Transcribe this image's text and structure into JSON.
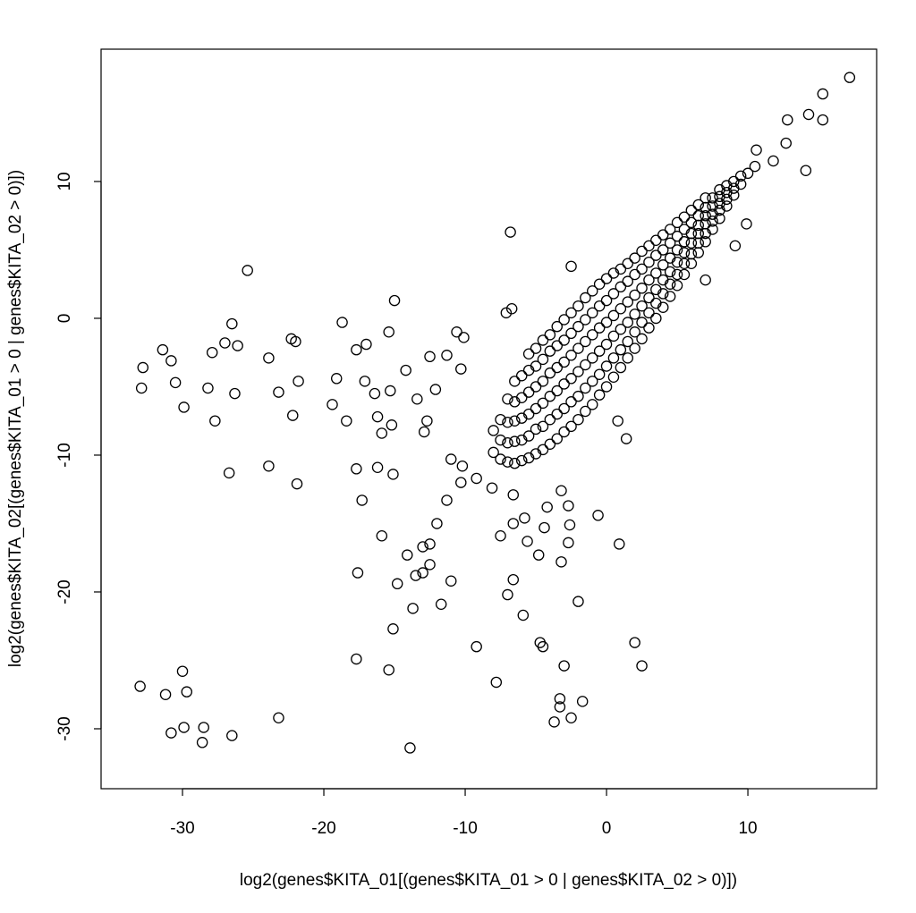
{
  "chart_data": {
    "type": "scatter",
    "x_label": "log2(genes$KITA_01[(genes$KITA_01 > 0 | genes$KITA_02 > 0)])",
    "y_label": "log2(genes$KITA_02[(genes$KITA_01 > 0 | genes$KITA_02 > 0)])",
    "xlim": [
      -35.76,
      19.11
    ],
    "ylim": [
      -34.38,
      19.67
    ],
    "xticks": [
      -30,
      -20,
      -10,
      0,
      10
    ],
    "yticks": [
      -30,
      -20,
      -10,
      0,
      10
    ],
    "color": "#000000",
    "x": [
      -6.8,
      -25.4,
      -15.0,
      -26.5,
      -18.7,
      -31.4,
      -32.8,
      -30.8,
      -27.0,
      -27.9,
      -26.1,
      -23.9,
      -22.3,
      -22.0,
      -32.9,
      -30.5,
      -28.2,
      -29.9,
      -26.3,
      -27.7,
      -23.2,
      -21.8,
      -22.2,
      -26.7,
      -23.9,
      -21.9,
      -17.0,
      -17.7,
      -15.4,
      -17.1,
      -19.1,
      -19.4,
      -18.4,
      -16.4,
      -15.3,
      -14.2,
      -16.2,
      -15.9,
      -15.2,
      -17.7,
      -17.3,
      -16.2,
      -15.1,
      -12.5,
      -12.1,
      -13.4,
      -12.7,
      -12.9,
      -10.6,
      -10.1,
      -11.3,
      -10.3,
      -11.0,
      -10.2,
      -10.3,
      -11.3,
      -12.0,
      -13.0,
      -12.5,
      -14.1,
      -12.5,
      -13.5,
      -13.0,
      -14.8,
      -17.6,
      -15.9,
      -11.0,
      -11.7,
      -13.7,
      -15.1,
      -17.7,
      -15.4,
      -13.9,
      -9.2,
      -8.1,
      -7.5,
      -6.6,
      -6.6,
      -5.8,
      -5.6,
      -4.8,
      -4.2,
      -4.4,
      -3.2,
      -2.7,
      -2.6,
      -2.7,
      -3.2,
      -0.6,
      0.9,
      -6.6,
      -7.0,
      -5.9,
      -2.0,
      -9.2,
      -7.8,
      -4.7,
      -4.5,
      -3.0,
      -3.3,
      -3.3,
      -3.7,
      -2.5,
      -1.7,
      2.0,
      2.5,
      -33.0,
      -31.2,
      -30.0,
      -29.7,
      -30.8,
      -29.9,
      -28.5,
      -28.6,
      -26.5,
      -23.2,
      -2.5,
      -6.7,
      -7.1,
      9.9,
      9.1,
      7.0,
      17.2,
      15.3,
      15.3,
      12.8,
      14.3,
      14.1,
      12.7,
      11.8,
      10.6,
      1.4,
      0.8,
      -8,
      -8,
      -7.5,
      -7.5,
      -7.5,
      -7,
      -7,
      -7,
      -7,
      -6.5,
      -6.5,
      -6.5,
      -6.5,
      -6.5,
      -6,
      -6,
      -6,
      -6,
      -6,
      -5.5,
      -5.5,
      -5.5,
      -5.5,
      -5.5,
      -5.5,
      -5,
      -5,
      -5,
      -5,
      -5,
      -5,
      -4.5,
      -4.5,
      -4.5,
      -4.5,
      -4.5,
      -4.5,
      -4,
      -4,
      -4,
      -4,
      -4,
      -4,
      -3.5,
      -3.5,
      -3.5,
      -3.5,
      -3.5,
      -3.5,
      -3,
      -3,
      -3,
      -3,
      -3,
      -3,
      -2.5,
      -2.5,
      -2.5,
      -2.5,
      -2.5,
      -2.5,
      -2,
      -2,
      -2,
      -2,
      -2,
      -2,
      -1.5,
      -1.5,
      -1.5,
      -1.5,
      -1.5,
      -1.5,
      -1,
      -1,
      -1,
      -1,
      -1,
      -1,
      -0.5,
      -0.5,
      -0.5,
      -0.5,
      -0.5,
      -0.5,
      0,
      0,
      0,
      0,
      0,
      0,
      0.5,
      0.5,
      0.5,
      0.5,
      0.5,
      0.5,
      1,
      1,
      1,
      1,
      1,
      1,
      1.5,
      1.5,
      1.5,
      1.5,
      1.5,
      1.5,
      2,
      2,
      2,
      2,
      2,
      2,
      2.5,
      2.5,
      2.5,
      2.5,
      2.5,
      2.5,
      3,
      3,
      3,
      3,
      3,
      3,
      3.5,
      3.5,
      3.5,
      3.5,
      3.5,
      3.5,
      4,
      4,
      4,
      4,
      4,
      4,
      4.5,
      4.5,
      4.5,
      4.5,
      4.5,
      4.5,
      5,
      5,
      5,
      5,
      5,
      5,
      5.5,
      5.5,
      5.5,
      5.5,
      5.5,
      5.5,
      6,
      6,
      6,
      6,
      6,
      6,
      6.5,
      6.5,
      6.5,
      6.5,
      6.5,
      6.5,
      7,
      7,
      7,
      7,
      7,
      7,
      7.5,
      7.5,
      7.5,
      7.5,
      7.5,
      8,
      8,
      8,
      8,
      8,
      8.5,
      8.5,
      8.5,
      8.5,
      9,
      9,
      9,
      9.5,
      9.5,
      10,
      10.5
    ],
    "values": [
      6.3,
      3.5,
      1.3,
      -0.4,
      -0.3,
      -2.3,
      -3.6,
      -3.1,
      -1.8,
      -2.5,
      -2.0,
      -2.9,
      -1.5,
      -1.7,
      -5.1,
      -4.7,
      -5.1,
      -6.5,
      -5.5,
      -7.5,
      -5.4,
      -4.6,
      -7.1,
      -11.3,
      -10.8,
      -12.1,
      -1.9,
      -2.3,
      -1.0,
      -4.6,
      -4.4,
      -6.3,
      -7.5,
      -5.5,
      -5.3,
      -3.8,
      -7.2,
      -8.4,
      -7.8,
      -11.0,
      -13.3,
      -10.9,
      -11.4,
      -2.8,
      -5.2,
      -5.9,
      -7.5,
      -8.3,
      -1.0,
      -1.4,
      -2.7,
      -3.7,
      -10.3,
      -10.8,
      -12.0,
      -13.3,
      -15.0,
      -16.7,
      -16.5,
      -17.3,
      -18.0,
      -18.8,
      -18.6,
      -19.4,
      -18.6,
      -15.9,
      -19.2,
      -20.9,
      -21.2,
      -22.7,
      -24.9,
      -25.7,
      -31.4,
      -11.7,
      -12.4,
      -15.9,
      -12.9,
      -15.0,
      -14.6,
      -16.3,
      -17.3,
      -13.8,
      -15.3,
      -12.6,
      -13.7,
      -15.1,
      -16.4,
      -17.8,
      -14.4,
      -16.5,
      -19.1,
      -20.2,
      -21.7,
      -20.7,
      -24.0,
      -26.6,
      -23.7,
      -24.0,
      -25.4,
      -27.8,
      -28.4,
      -29.5,
      -29.2,
      -28.0,
      -23.7,
      -25.4,
      -26.9,
      -27.5,
      -25.8,
      -27.3,
      -30.3,
      -29.9,
      -29.9,
      -31.0,
      -30.5,
      -29.2,
      3.8,
      0.7,
      0.4,
      6.9,
      5.3,
      2.8,
      17.6,
      16.4,
      14.5,
      14.5,
      14.9,
      10.8,
      12.8,
      11.5,
      12.3,
      -8.8,
      -7.5,
      -9.8,
      -8.2,
      -10.3,
      -8.9,
      -7.4,
      -10.5,
      -9.1,
      -7.6,
      -5.9,
      -10.6,
      -9.0,
      -7.5,
      -6.1,
      -4.6,
      -10.4,
      -8.9,
      -7.3,
      -5.8,
      -4.2,
      -10.2,
      -8.6,
      -7.0,
      -5.4,
      -3.8,
      -2.6,
      -9.9,
      -8.1,
      -6.6,
      -5.0,
      -3.5,
      -2.2,
      -9.6,
      -7.9,
      -6.2,
      -4.6,
      -3.0,
      -1.6,
      -9.2,
      -7.4,
      -5.7,
      -4.0,
      -2.4,
      -1.2,
      -8.8,
      -7.0,
      -5.3,
      -3.6,
      -2.0,
      -0.6,
      -8.3,
      -6.6,
      -4.8,
      -3.2,
      -1.6,
      -0.1,
      -7.9,
      -6.1,
      -4.4,
      -2.7,
      -1.1,
      0.4,
      -7.4,
      -5.7,
      -3.9,
      -2.2,
      -0.6,
      0.9,
      -6.8,
      -5.1,
      -3.4,
      -1.7,
      -0.1,
      1.5,
      -6.3,
      -4.6,
      -2.9,
      -1.2,
      0.4,
      2.0,
      -5.6,
      -4.1,
      -2.4,
      -0.7,
      0.9,
      2.5,
      -5.0,
      -3.5,
      -1.9,
      -0.3,
      1.3,
      2.9,
      -4.3,
      -2.9,
      -1.3,
      0.2,
      1.8,
      3.3,
      -3.6,
      -2.3,
      -0.8,
      0.7,
      2.3,
      3.6,
      -2.9,
      -1.7,
      -0.3,
      1.2,
      2.7,
      4.0,
      -2.2,
      -1.0,
      0.3,
      1.7,
      3.2,
      4.4,
      -1.5,
      -0.3,
      0.9,
      2.2,
      3.6,
      4.9,
      -0.7,
      0.4,
      1.5,
      2.8,
      4.1,
      5.3,
      0.0,
      1.1,
      2.1,
      3.3,
      4.6,
      5.7,
      0.8,
      1.8,
      2.8,
      3.9,
      5.0,
      6.1,
      1.6,
      2.5,
      3.4,
      4.4,
      5.5,
      6.5,
      2.4,
      3.2,
      4.1,
      5.0,
      6.0,
      7.0,
      3.2,
      4.0,
      4.8,
      5.6,
      6.5,
      7.4,
      4.0,
      4.7,
      5.5,
      6.2,
      7.0,
      7.9,
      4.8,
      5.5,
      6.2,
      6.8,
      7.5,
      8.3,
      5.6,
      6.2,
      6.9,
      7.5,
      8.1,
      8.8,
      6.5,
      7.1,
      7.6,
      8.2,
      8.8,
      7.3,
      7.9,
      8.4,
      8.9,
      9.4,
      8.2,
      8.7,
      9.2,
      9.7,
      9.0,
      9.5,
      10.0,
      9.8,
      10.4,
      10.6,
      11.1
    ]
  }
}
